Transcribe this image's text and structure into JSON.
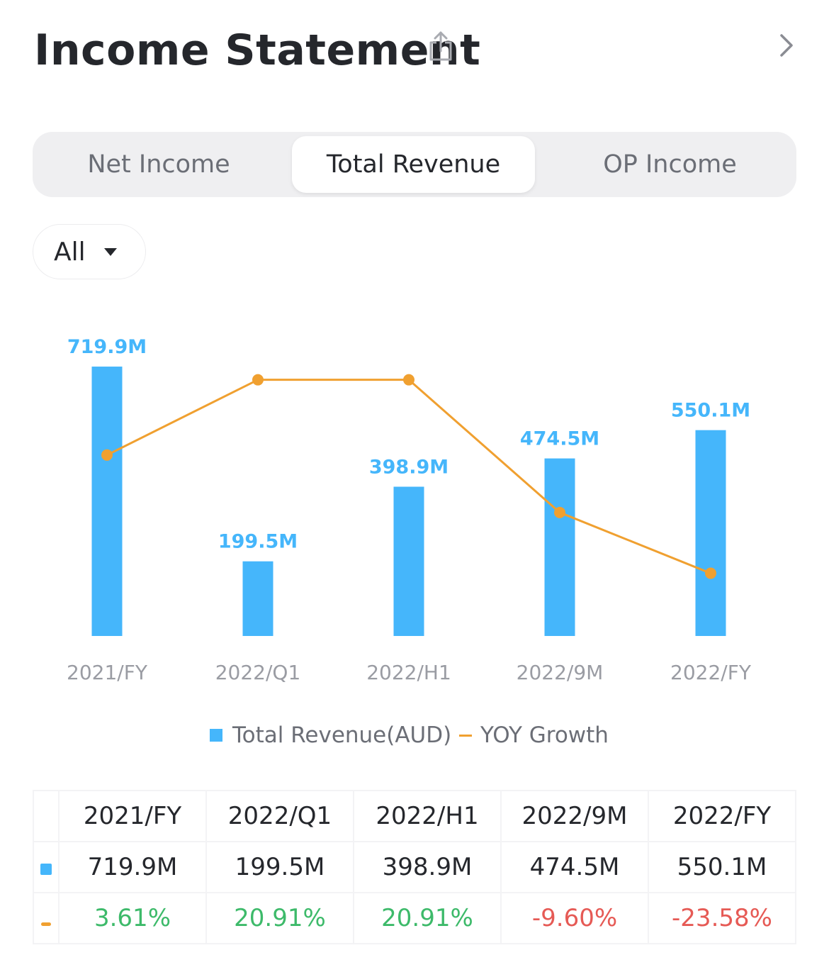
{
  "header": {
    "title": "Income Statement"
  },
  "tabs": [
    {
      "label": "Net Income",
      "active": false
    },
    {
      "label": "Total Revenue",
      "active": true
    },
    {
      "label": "OP Income",
      "active": false
    }
  ],
  "filter": {
    "selected": "All"
  },
  "colors": {
    "bar": "#45b6fb",
    "line": "#f0a030",
    "positive": "#3dba6a",
    "negative": "#e65a55"
  },
  "chart_data": {
    "type": "bar",
    "categories": [
      "2021/FY",
      "2022/Q1",
      "2022/H1",
      "2022/9M",
      "2022/FY"
    ],
    "series": [
      {
        "name": "Total Revenue(AUD)",
        "type": "bar",
        "values": [
          719.9,
          199.5,
          398.9,
          474.5,
          550.1
        ],
        "labels": [
          "719.9M",
          "199.5M",
          "398.9M",
          "474.5M",
          "550.1M"
        ]
      },
      {
        "name": "YOY Growth",
        "type": "line",
        "values": [
          3.61,
          20.91,
          20.91,
          -9.6,
          -23.58
        ]
      }
    ],
    "ylim_bar": [
      0,
      720
    ],
    "ylim_line": [
      -38,
      22
    ],
    "legend": [
      "Total Revenue(AUD)",
      "YOY Growth"
    ]
  },
  "table": {
    "headers": [
      "2021/FY",
      "2022/Q1",
      "2022/H1",
      "2022/9M",
      "2022/FY"
    ],
    "revenue": [
      "719.9M",
      "199.5M",
      "398.9M",
      "474.5M",
      "550.1M"
    ],
    "growth": [
      "3.61%",
      "20.91%",
      "20.91%",
      "-9.60%",
      "-23.58%"
    ]
  }
}
